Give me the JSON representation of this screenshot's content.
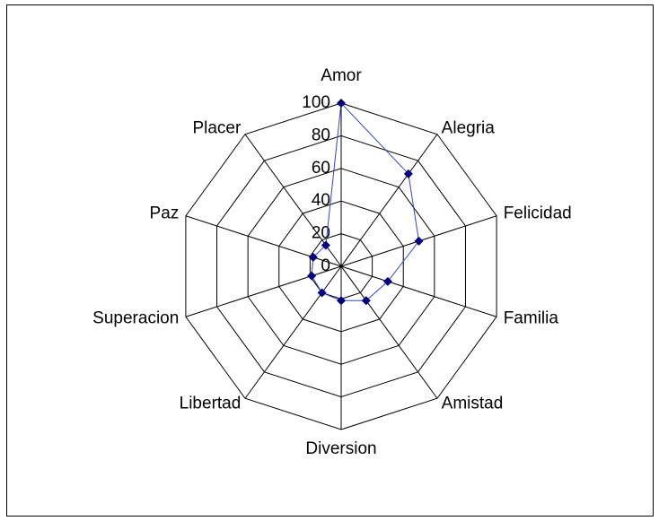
{
  "chart_data": {
    "type": "radar",
    "categories": [
      "Amor",
      "Alegria",
      "Felicidad",
      "Familia",
      "Amistad",
      "Diversion",
      "Libertad",
      "Superacion",
      "Paz",
      "Placer"
    ],
    "values": [
      100,
      70,
      50,
      30,
      26,
      21,
      20,
      19,
      18,
      16
    ],
    "color": "#3344cc",
    "marker_color": "#000080",
    "ylim": [
      0,
      100
    ],
    "yticks": [
      0,
      20,
      40,
      60,
      80,
      100
    ],
    "grid": true
  }
}
